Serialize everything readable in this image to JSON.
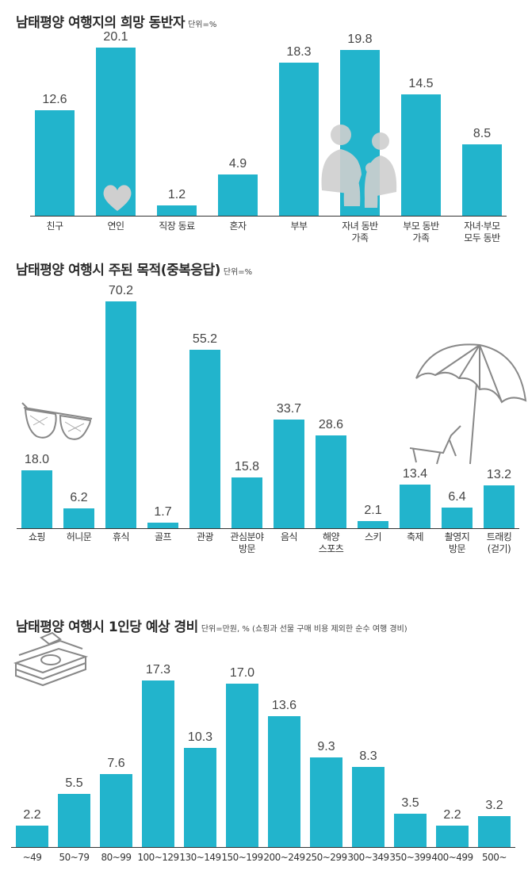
{
  "colors": {
    "bar": "#22b4cc",
    "axis": "#333333",
    "text": "#333333"
  },
  "section1": {
    "title": "남태평양 여행지의 희망 동반자",
    "unit": "단위=%",
    "chart_data": {
      "type": "bar",
      "title": "남태평양 여행지의 희망 동반자",
      "ylabel": "단위=%",
      "ylim": [
        0,
        20.1
      ],
      "categories": [
        "친구",
        "연인",
        "직장 동료",
        "혼자",
        "부부",
        "자녀 동반\n가족",
        "부모 동반\n가족",
        "자녀·부모\n모두 동반"
      ],
      "values": [
        12.6,
        20.1,
        1.2,
        4.9,
        18.3,
        19.8,
        14.5,
        8.5
      ],
      "value_labels": [
        "12.6",
        "20.1",
        "1.2",
        "4.9",
        "18.3",
        "19.8",
        "14.5",
        "8.5"
      ]
    }
  },
  "section2": {
    "title": "남태평양 여행시 주된 목적(중복응답)",
    "unit": "단위=%",
    "chart_data": {
      "type": "bar",
      "title": "남태평양 여행시 주된 목적(중복응답)",
      "ylabel": "단위=%",
      "ylim": [
        0,
        70.2
      ],
      "categories": [
        "쇼핑",
        "허니문",
        "휴식",
        "골프",
        "관광",
        "관심분야\n방문",
        "음식",
        "해양\n스포츠",
        "스키",
        "축제",
        "촬영지\n방문",
        "트래킹\n(걷기)"
      ],
      "values": [
        18.0,
        6.2,
        70.2,
        1.7,
        55.2,
        15.8,
        33.7,
        28.6,
        2.1,
        13.4,
        6.4,
        13.2
      ],
      "value_labels": [
        "18.0",
        "6.2",
        "70.2",
        "1.7",
        "55.2",
        "15.8",
        "33.7",
        "28.6",
        "2.1",
        "13.4",
        "6.4",
        "13.2"
      ]
    }
  },
  "section3": {
    "title": "남태평양 여행시 1인당 예상 경비",
    "unit": "단위=만원, % (쇼핑과 선물 구매 비용 제외한 순수 여행 경비)",
    "chart_data": {
      "type": "bar",
      "title": "남태평양 여행시 1인당 예상 경비",
      "ylabel": "단위=만원, %",
      "ylim": [
        0,
        17.3
      ],
      "categories": [
        "~49",
        "50~79",
        "80~99",
        "100~129",
        "130~149",
        "150~199",
        "200~249",
        "250~299",
        "300~349",
        "350~399",
        "400~499",
        "500~"
      ],
      "values": [
        2.2,
        5.5,
        7.6,
        17.3,
        10.3,
        17.0,
        13.6,
        9.3,
        8.3,
        3.5,
        2.2,
        3.2
      ],
      "value_labels": [
        "2.2",
        "5.5",
        "7.6",
        "17.3",
        "10.3",
        "17.0",
        "13.6",
        "9.3",
        "8.3",
        "3.5",
        "2.2",
        "3.2"
      ]
    }
  },
  "icons": {
    "heart": "heart-icon",
    "family": "family-icon",
    "sunglasses": "sunglasses-icon",
    "umbrella": "beach-umbrella-icon",
    "money": "money-stack-icon"
  }
}
